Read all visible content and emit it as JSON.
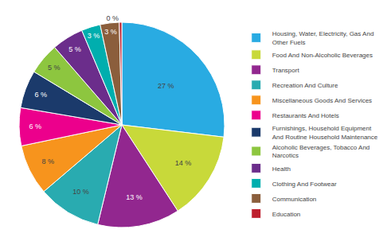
{
  "chart_data": {
    "type": "pie",
    "categories": [
      "Housing, Water, Electricity, Gas And\nOther Fuels",
      "Food And Non-Alcoholic Beverages",
      "Transport",
      "Recreation And Culture",
      "Miscellaneous Goods And Services",
      "Restaurants And Hotels",
      "Furnishings, Household Equipment\nAnd Routine Household Maintenance",
      "Alcoholic Beverages, Tobacco And\nNarcotics",
      "Health",
      "Clothing And Footwear",
      "Communication",
      "Education"
    ],
    "values": [
      27,
      14,
      13,
      10,
      8,
      6,
      6,
      5,
      5,
      3,
      3,
      0.4
    ],
    "value_labels": [
      "27 %",
      "14 %",
      "13 %",
      "10 %",
      "8 %",
      "6 %",
      "6 %",
      "5 %",
      "5 %",
      "3 %",
      "3 %",
      "0 %"
    ],
    "colors": [
      "#29ABE2",
      "#C8D93A",
      "#92278F",
      "#29ABB0",
      "#F7941D",
      "#EC008C",
      "#1B3A6B",
      "#8DC63F",
      "#6B2D8B",
      "#00AEAE",
      "#8B5E3C",
      "#BE1E2D"
    ],
    "data_labels": true,
    "legend": "right"
  }
}
